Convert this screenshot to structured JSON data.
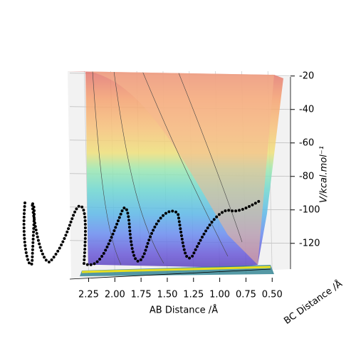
{
  "chart_data": {
    "type": "surface3d",
    "xlabel": "AB Distance /Å",
    "ylabel": "BC Distance /Å",
    "zlabel": "V/kcal.mol⁻¹",
    "xlim": [
      2.45,
      0.4
    ],
    "xticks": [
      2.25,
      {
        "value": 2,
        "label": "2.00"
      },
      1.75,
      {
        "value": 1.5,
        "label": "1.50"
      },
      1.25,
      {
        "value": 1,
        "label": "1.00"
      },
      0.75,
      {
        "value": 0.5,
        "label": "0.50"
      }
    ],
    "zlim": [
      -135,
      -15
    ],
    "zticks": [
      -20,
      -40,
      -60,
      -80,
      -100,
      -120
    ],
    "grid": true
  }
}
